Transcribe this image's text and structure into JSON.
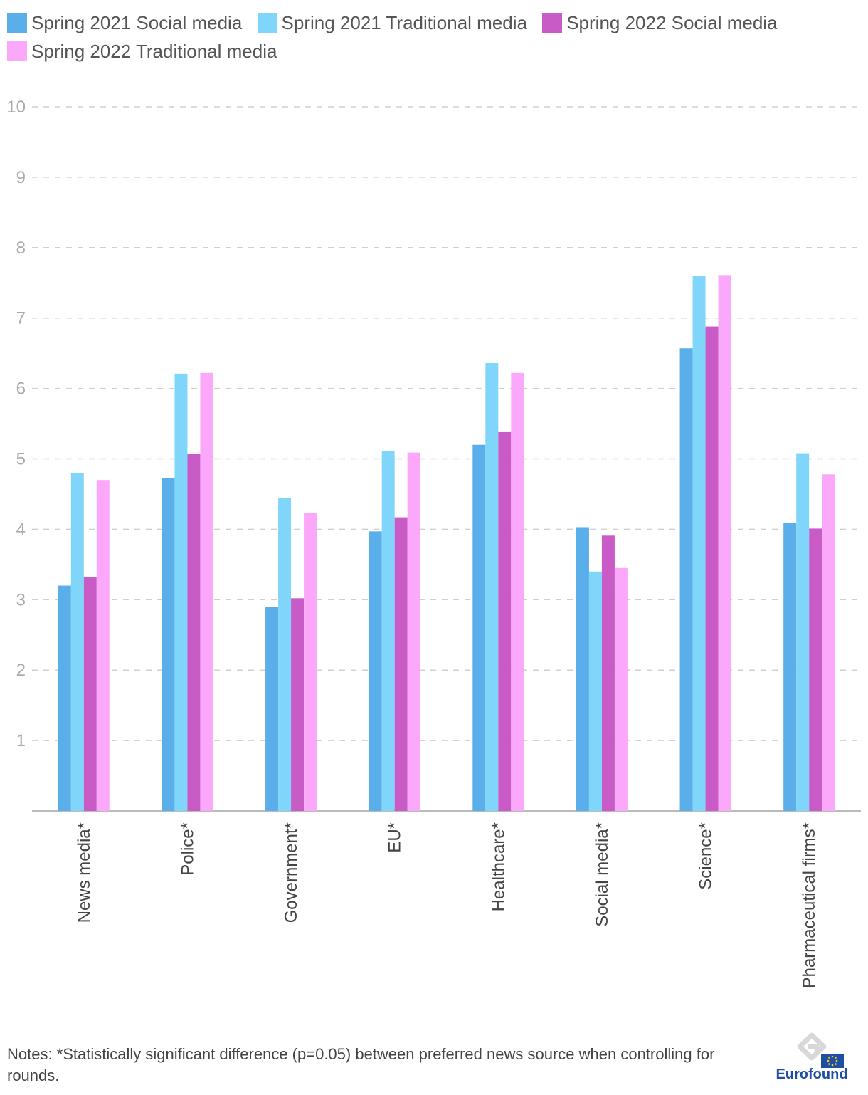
{
  "chart_data": {
    "type": "bar",
    "categories": [
      "News media*",
      "Police*",
      "Government*",
      "EU*",
      "Healthcare*",
      "Social media*",
      "Science*",
      "Pharmaceutical firms*"
    ],
    "series": [
      {
        "name": "Spring 2021 Social media",
        "color": "#5aaeea",
        "values": [
          3.2,
          4.73,
          2.9,
          3.97,
          5.2,
          4.03,
          6.57,
          4.09
        ]
      },
      {
        "name": "Spring 2021 Traditional media",
        "color": "#80d6fa",
        "values": [
          4.8,
          6.21,
          4.44,
          5.11,
          6.36,
          3.4,
          7.6,
          5.08
        ]
      },
      {
        "name": "Spring 2022 Social media",
        "color": "#c85bc6",
        "values": [
          3.32,
          5.07,
          3.02,
          4.17,
          5.38,
          3.91,
          6.88,
          4.01
        ]
      },
      {
        "name": "Spring 2022 Traditional media",
        "color": "#fba8fb",
        "values": [
          4.7,
          6.22,
          4.23,
          5.09,
          6.22,
          3.45,
          7.61,
          4.78
        ]
      }
    ],
    "yticks": [
      1,
      2,
      3,
      4,
      5,
      6,
      7,
      8,
      9,
      10
    ],
    "ylim": [
      0,
      10
    ],
    "grid": true,
    "legend_position": "top-left",
    "title": "",
    "xlabel": "",
    "ylabel": ""
  },
  "notes": "Notes: *Statistically significant difference (p=0.05) between preferred news source when controlling for rounds.",
  "logo": {
    "text": "Eurofound"
  }
}
